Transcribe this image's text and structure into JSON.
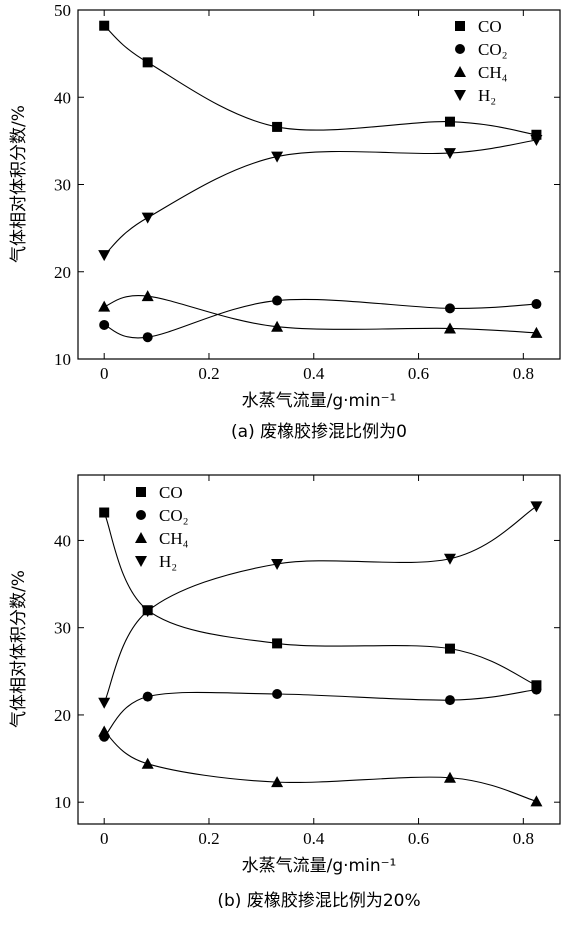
{
  "chart_data": [
    {
      "type": "scatter",
      "caption": "(a) 废橡胶掺混比例为0",
      "xlabel": "水蒸气流量/g·min⁻¹",
      "ylabel": "气体相对体积分数/%",
      "xlim": [
        -0.05,
        0.87
      ],
      "ylim": [
        10,
        50
      ],
      "xticks": [
        0,
        0.2,
        0.4,
        0.6,
        0.8
      ],
      "yticks": [
        10,
        20,
        30,
        40,
        50
      ],
      "legend_position": "top-right",
      "series": [
        {
          "name": "CO",
          "marker": "square",
          "x": [
            0,
            0.083,
            0.33,
            0.66,
            0.825
          ],
          "y": [
            48.2,
            44.0,
            36.6,
            37.2,
            35.7
          ]
        },
        {
          "name": "CO₂",
          "marker": "circle",
          "x": [
            0,
            0.083,
            0.33,
            0.66,
            0.825
          ],
          "y": [
            13.9,
            12.5,
            16.7,
            15.8,
            16.3
          ]
        },
        {
          "name": "CH₄",
          "marker": "triangle-up",
          "x": [
            0,
            0.083,
            0.33,
            0.66,
            0.825
          ],
          "y": [
            16.0,
            17.2,
            13.7,
            13.5,
            13.0
          ]
        },
        {
          "name": "H₂",
          "marker": "triangle-down",
          "x": [
            0,
            0.083,
            0.33,
            0.66,
            0.825
          ],
          "y": [
            21.9,
            26.2,
            33.2,
            33.6,
            35.1
          ]
        }
      ]
    },
    {
      "type": "scatter",
      "caption": "(b) 废橡胶掺混比例为20%",
      "xlabel": "水蒸气流量/g·min⁻¹",
      "ylabel": "气体相对体积分数/%",
      "xlim": [
        -0.05,
        0.87
      ],
      "ylim": [
        7.5,
        47.5
      ],
      "xticks": [
        0,
        0.2,
        0.4,
        0.6,
        0.8
      ],
      "yticks": [
        10,
        20,
        30,
        40
      ],
      "legend_position": "top-left",
      "series": [
        {
          "name": "CO",
          "marker": "square",
          "x": [
            0,
            0.083,
            0.33,
            0.66,
            0.825
          ],
          "y": [
            43.2,
            32.0,
            28.2,
            27.6,
            23.4
          ]
        },
        {
          "name": "CO₂",
          "marker": "circle",
          "x": [
            0,
            0.083,
            0.33,
            0.66,
            0.825
          ],
          "y": [
            17.5,
            22.1,
            22.4,
            21.7,
            22.9
          ]
        },
        {
          "name": "CH₄",
          "marker": "triangle-up",
          "x": [
            0,
            0.083,
            0.33,
            0.66,
            0.825
          ],
          "y": [
            18.1,
            14.4,
            12.3,
            12.8,
            10.1
          ]
        },
        {
          "name": "H₂",
          "marker": "triangle-down",
          "x": [
            0,
            0.083,
            0.33,
            0.66,
            0.825
          ],
          "y": [
            21.4,
            31.9,
            37.3,
            37.9,
            43.9
          ]
        }
      ]
    }
  ]
}
